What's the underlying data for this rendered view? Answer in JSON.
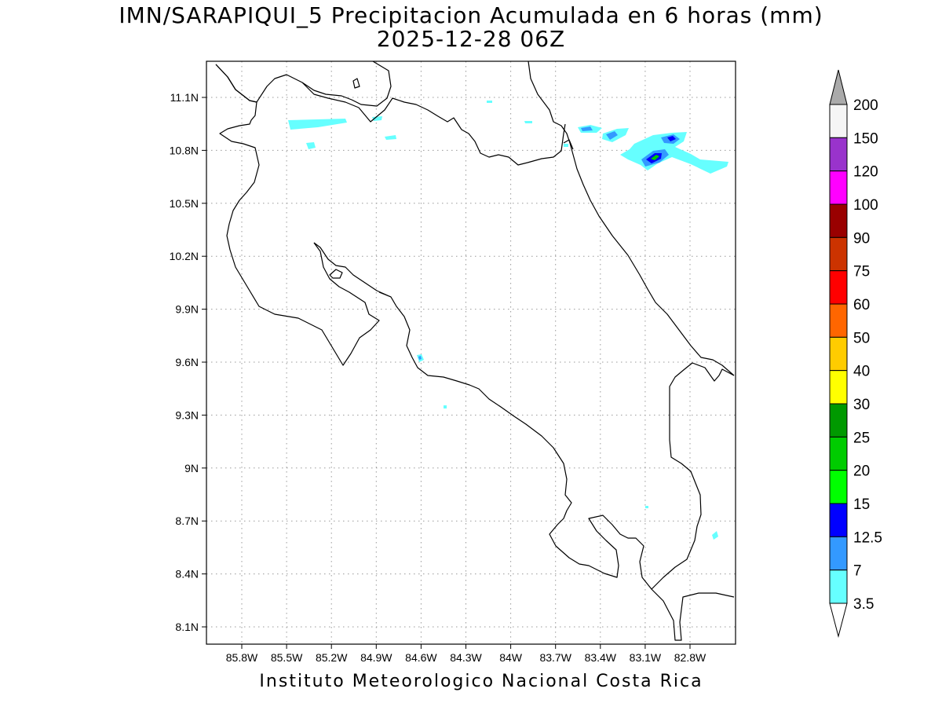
{
  "title": "IMN/SARAPIQUI_5 Precipitacion Acumulada en 6 horas (mm)",
  "subtitle": "2025-12-28 06Z",
  "footer": "Instituto Meteorologico Nacional Costa Rica",
  "map": {
    "lon_ticks": [
      "85.8W",
      "85.5W",
      "85.2W",
      "84.9W",
      "84.6W",
      "84.3W",
      "84W",
      "83.7W",
      "83.4W",
      "83.1W",
      "82.8W"
    ],
    "lat_ticks": [
      "11.1N",
      "10.8N",
      "10.5N",
      "10.2N",
      "9.9N",
      "9.6N",
      "9.3N",
      "9N",
      "8.7N",
      "8.4N",
      "8.1N"
    ],
    "lon_range": [
      "86.05W",
      "82.5W"
    ],
    "lat_range": [
      "8.0N",
      "11.3N"
    ],
    "grid": "dotted",
    "coastline_color": "#000000"
  },
  "colorbar": {
    "labels": [
      "200",
      "150",
      "120",
      "100",
      "90",
      "75",
      "60",
      "50",
      "40",
      "30",
      "25",
      "20",
      "15",
      "12.5",
      "7",
      "3.5"
    ],
    "colors": [
      "#f5f5f5",
      "#9933cc",
      "#ff00ff",
      "#990000",
      "#cc3300",
      "#ff0000",
      "#ff6600",
      "#ffcc00",
      "#ffff00",
      "#009900",
      "#00cc00",
      "#00ff00",
      "#0000ff",
      "#3399ff",
      "#66ffff"
    ],
    "over_color": "#aaaaaa",
    "under_color": "#ffffff"
  }
}
